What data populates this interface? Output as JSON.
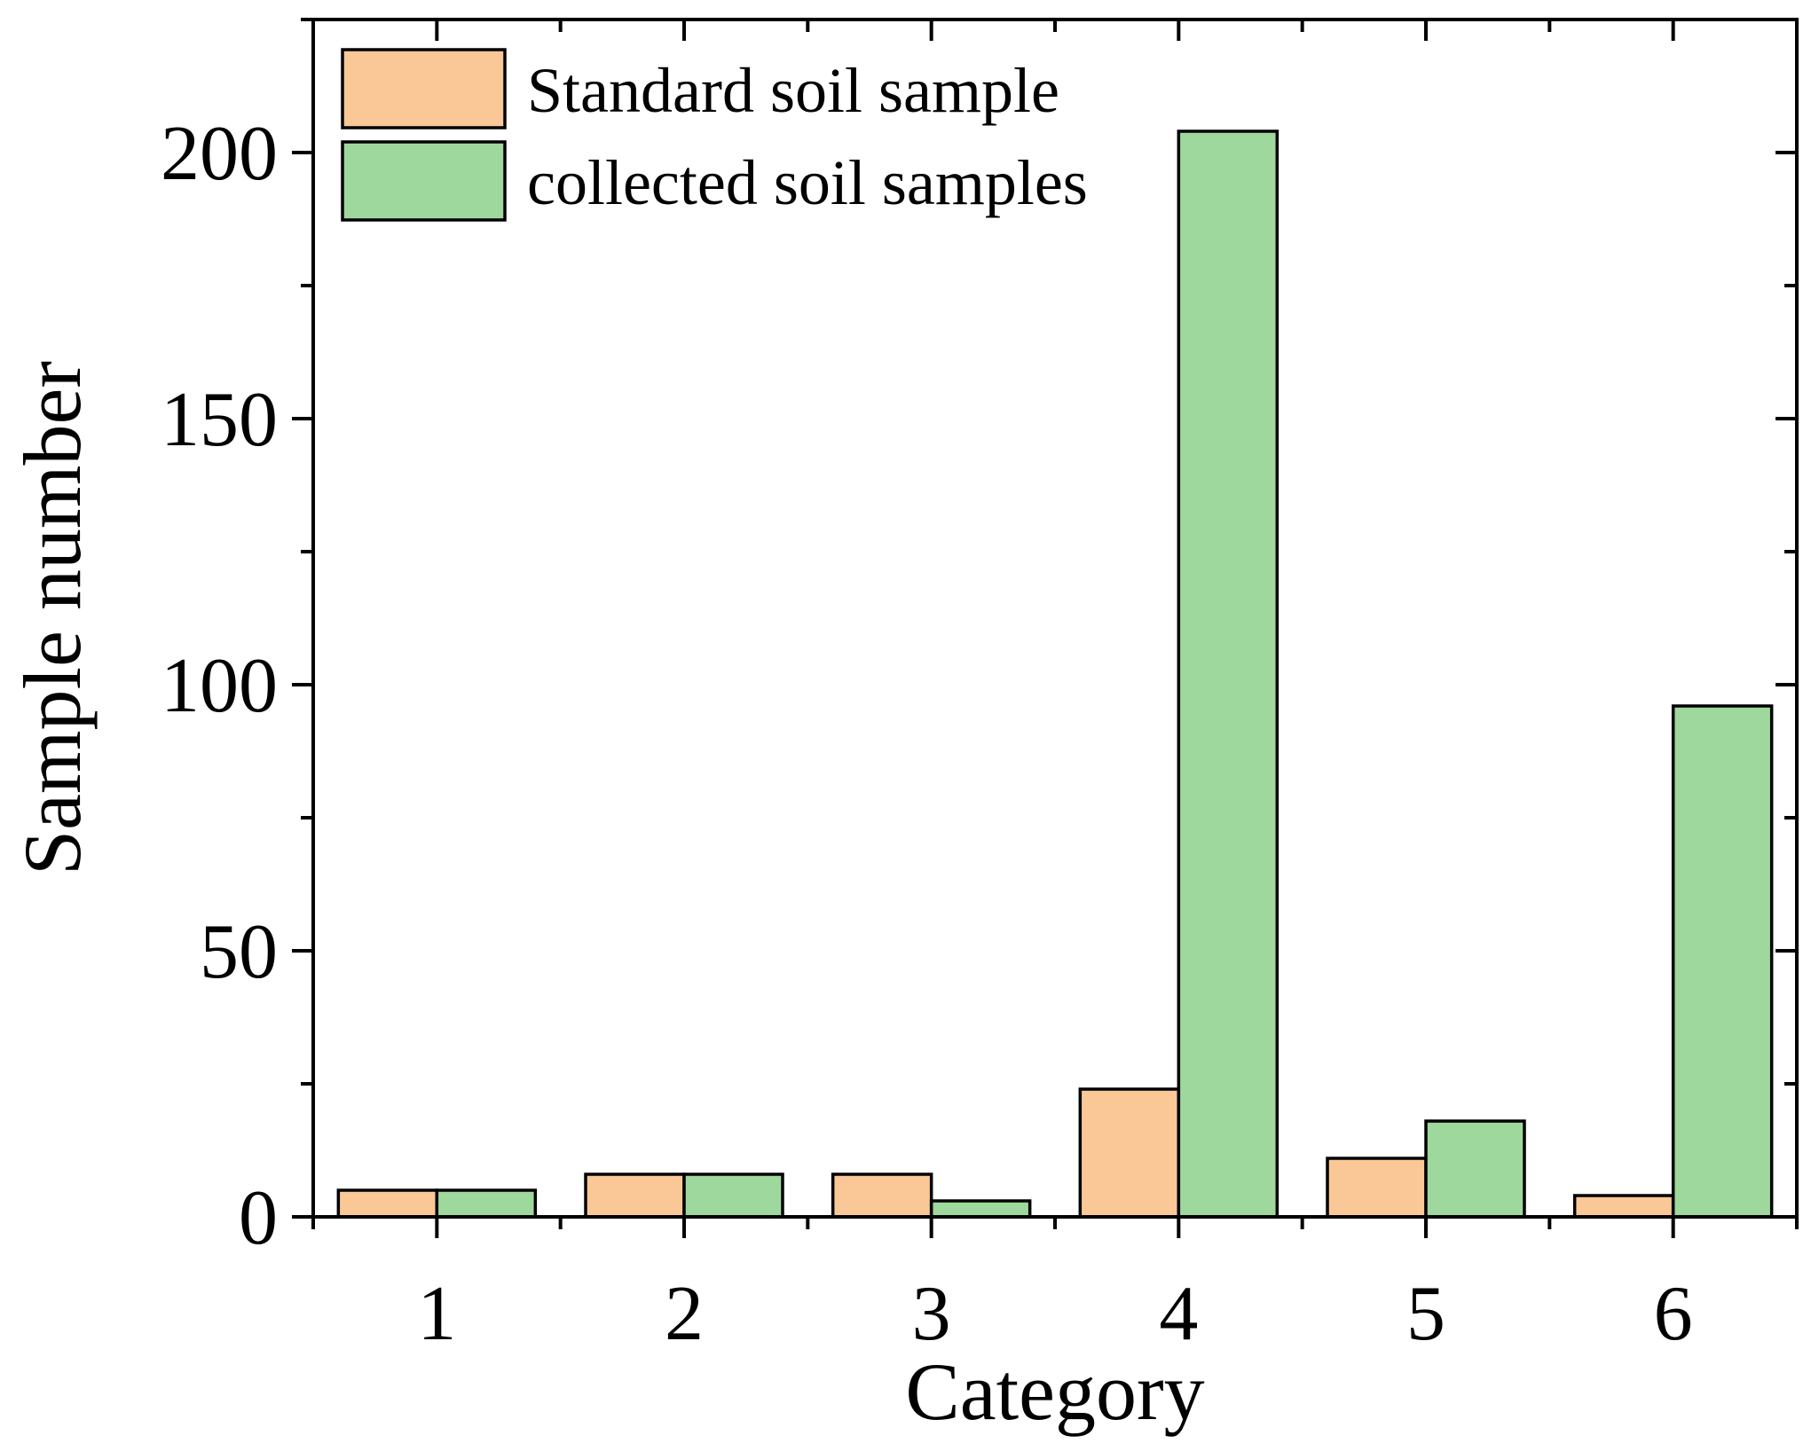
{
  "chart_data": {
    "type": "bar",
    "xlabel": "Category",
    "ylabel": "Sample number",
    "categories": [
      "1",
      "2",
      "3",
      "4",
      "5",
      "6"
    ],
    "ylim": [
      0,
      225
    ],
    "yticks": [
      "0",
      "50",
      "100",
      "150",
      "200"
    ],
    "y_minor_step": 25,
    "grid": false,
    "legend_position": "top-left",
    "series": [
      {
        "name": "Standard soil sample",
        "color": "#FAC896",
        "values": [
          5,
          8,
          8,
          24,
          11,
          4
        ]
      },
      {
        "name": "collected soil samples",
        "color": "#9ED89C",
        "values": [
          5,
          8,
          3,
          204,
          18,
          96
        ]
      }
    ]
  }
}
